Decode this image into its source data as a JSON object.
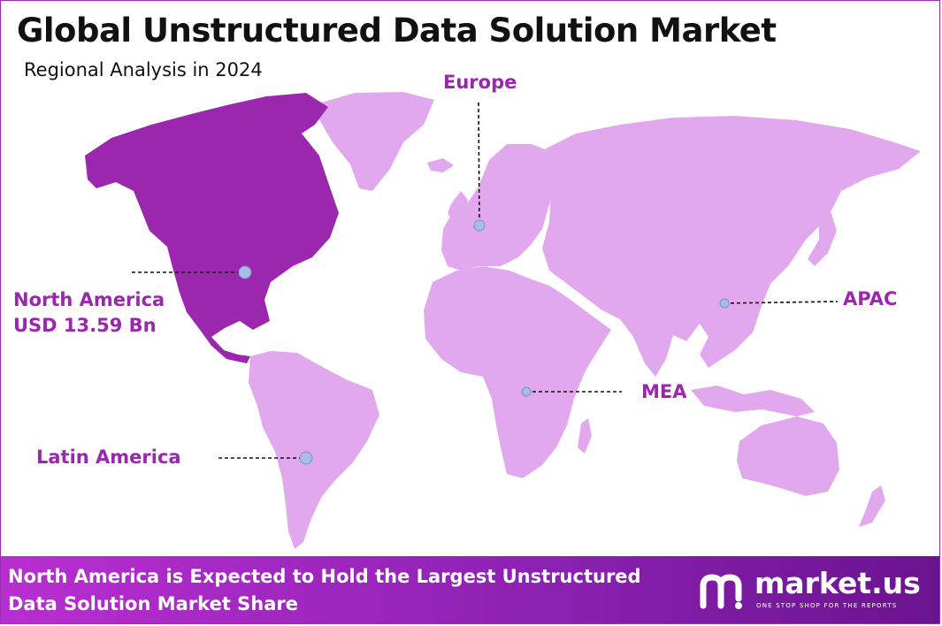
{
  "title": "Global Unstructured Data Solution Market",
  "subtitle": "Regional Analysis in 2024",
  "regions": {
    "europe": "Europe",
    "north_america": "North America",
    "north_america_value": "USD 13.59 Bn",
    "apac": "APAC",
    "mea": "MEA",
    "latin_america": "Latin America"
  },
  "highlighted_region": "North America",
  "footer": {
    "line1": "North America is Expected to Hold the Largest Unstructured",
    "line2": "Data Solution Market Share"
  },
  "brand": {
    "name": "market.us",
    "tagline": "ONE STOP SHOP FOR THE REPORTS"
  },
  "colors": {
    "highlight": "#9b27af",
    "land": "#e2a8ee",
    "marker": "#a6bde6",
    "frame": "#9c2fb5"
  }
}
